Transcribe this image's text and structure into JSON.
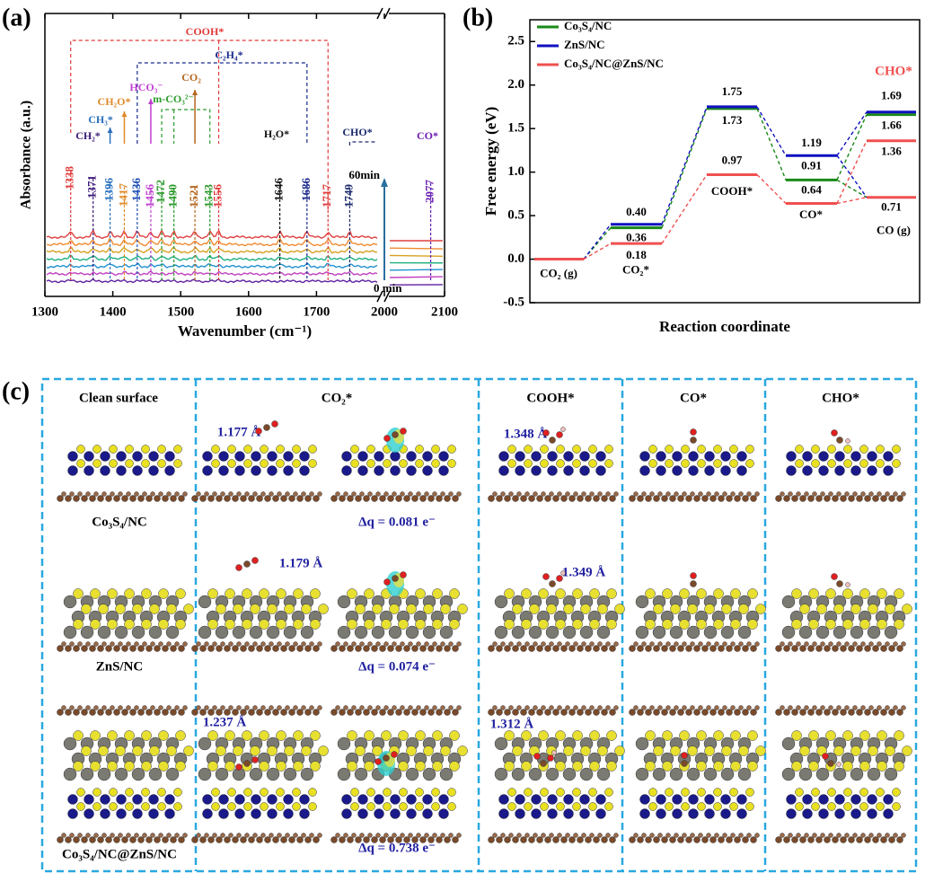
{
  "chart_data": [
    {
      "type": "spectra",
      "panel_label": "(a)",
      "xlabel": "Wavenumber (cm⁻¹)",
      "ylabel": "Absorbance (a.u.)",
      "xlim": [
        1300,
        2100
      ],
      "xbreak": [
        1800,
        2000
      ],
      "xticks": [
        1300,
        1400,
        1500,
        1600,
        1700,
        2000,
        2100
      ],
      "peaks": [
        {
          "value": 1338,
          "color": "#e03a3a"
        },
        {
          "value": 1371,
          "color": "#3d1a7a"
        },
        {
          "value": 1396,
          "color": "#2a6fbd"
        },
        {
          "value": 1417,
          "color": "#e08a2a"
        },
        {
          "value": 1436,
          "color": "#1f4fb5"
        },
        {
          "value": 1456,
          "color": "#c040d0"
        },
        {
          "value": 1472,
          "color": "#2a9a2a"
        },
        {
          "value": 1490,
          "color": "#2a9a2a"
        },
        {
          "value": 1521,
          "color": "#b5651d"
        },
        {
          "value": 1543,
          "color": "#2a9a2a"
        },
        {
          "value": 1556,
          "color": "#e03a3a"
        },
        {
          "value": 1646,
          "color": "#111111"
        },
        {
          "value": 1686,
          "color": "#1a2a8c"
        },
        {
          "value": 1717,
          "color": "#e03a3a"
        },
        {
          "value": 1749,
          "color": "#1a2a6c"
        },
        {
          "value": 2077,
          "color": "#6a1fb0"
        }
      ],
      "species": [
        {
          "label": "COOH*",
          "color": "#e03a3a"
        },
        {
          "label": "C₂H₄*",
          "color": "#1a2a8c"
        },
        {
          "label": "CO₂",
          "color": "#b5651d"
        },
        {
          "label": "HCO₃⁻",
          "color": "#c040d0"
        },
        {
          "label": "m-CO₃²⁻",
          "color": "#2a9a2a"
        },
        {
          "label": "CH₂O*",
          "color": "#e08a2a"
        },
        {
          "label": "CH₃*",
          "color": "#2a6fbd"
        },
        {
          "label": "CH₂*",
          "color": "#3d1a7a"
        },
        {
          "label": "H₂O*",
          "color": "#111111"
        },
        {
          "label": "CHO*",
          "color": "#1a2a6c"
        },
        {
          "label": "CO*",
          "color": "#6a1fb0"
        }
      ],
      "trace_colors": [
        "#e04040",
        "#f08a30",
        "#d8a020",
        "#20b080",
        "#2090d0",
        "#c040c0",
        "#6020a0"
      ],
      "time_labels": [
        "60min",
        "0 min"
      ]
    },
    {
      "type": "energy_diagram",
      "panel_label": "(b)",
      "ylabel": "Free energy (eV)",
      "xlabel": "Reaction coordinate",
      "ylim": [
        -0.5,
        2.75
      ],
      "yticks": [
        -0.5,
        {
          "value": 0,
          "label": "0.0"
        },
        0.5,
        {
          "value": 1,
          "label": "1.0"
        },
        1.5,
        {
          "value": 2,
          "label": "2.0"
        },
        2.5
      ],
      "states": [
        "CO₂ (g)",
        "CO₂*",
        "COOH*",
        "CO*",
        "CHO*"
      ],
      "co_gas": {
        "label": "CO (g)",
        "value": 0.71,
        "color": "#f05050"
      },
      "legend": "upper left",
      "series": [
        {
          "name": "Co₃S₄/NC",
          "color": "#1a8a1a",
          "values": [
            0,
            0.36,
            1.73,
            0.91,
            1.66
          ]
        },
        {
          "name": "ZnS/NC",
          "color": "#1010c0",
          "values": [
            0,
            0.4,
            1.75,
            1.19,
            1.69
          ],
          "value_labels": [
            null,
            "0.40",
            "1.75",
            "1.19",
            "1.69"
          ]
        },
        {
          "name": "Co₃S₄/NC@ZnS/NC",
          "color": "#f05050",
          "values": [
            0,
            0.18,
            0.97,
            0.64,
            1.36
          ]
        }
      ]
    }
  ],
  "panel_c": {
    "label": "(c)",
    "columns": [
      "Clean surface",
      "CO₂*",
      "COOH*",
      "CO*",
      "CHO*"
    ],
    "rows": [
      "Co₃S₄/NC",
      "ZnS/NC",
      "Co₃S₄/NC@ZnS/NC"
    ],
    "bond_lengths": [
      "1.177 Å",
      "1.179 Å",
      "1.237 Å",
      "1.348 Å",
      "1.349 Å",
      "1.312 Å"
    ],
    "charge_transfer": [
      "Δq = 0.081 e⁻",
      "Δq = 0.074 e⁻",
      "Δq = 0.738 e⁻"
    ]
  }
}
